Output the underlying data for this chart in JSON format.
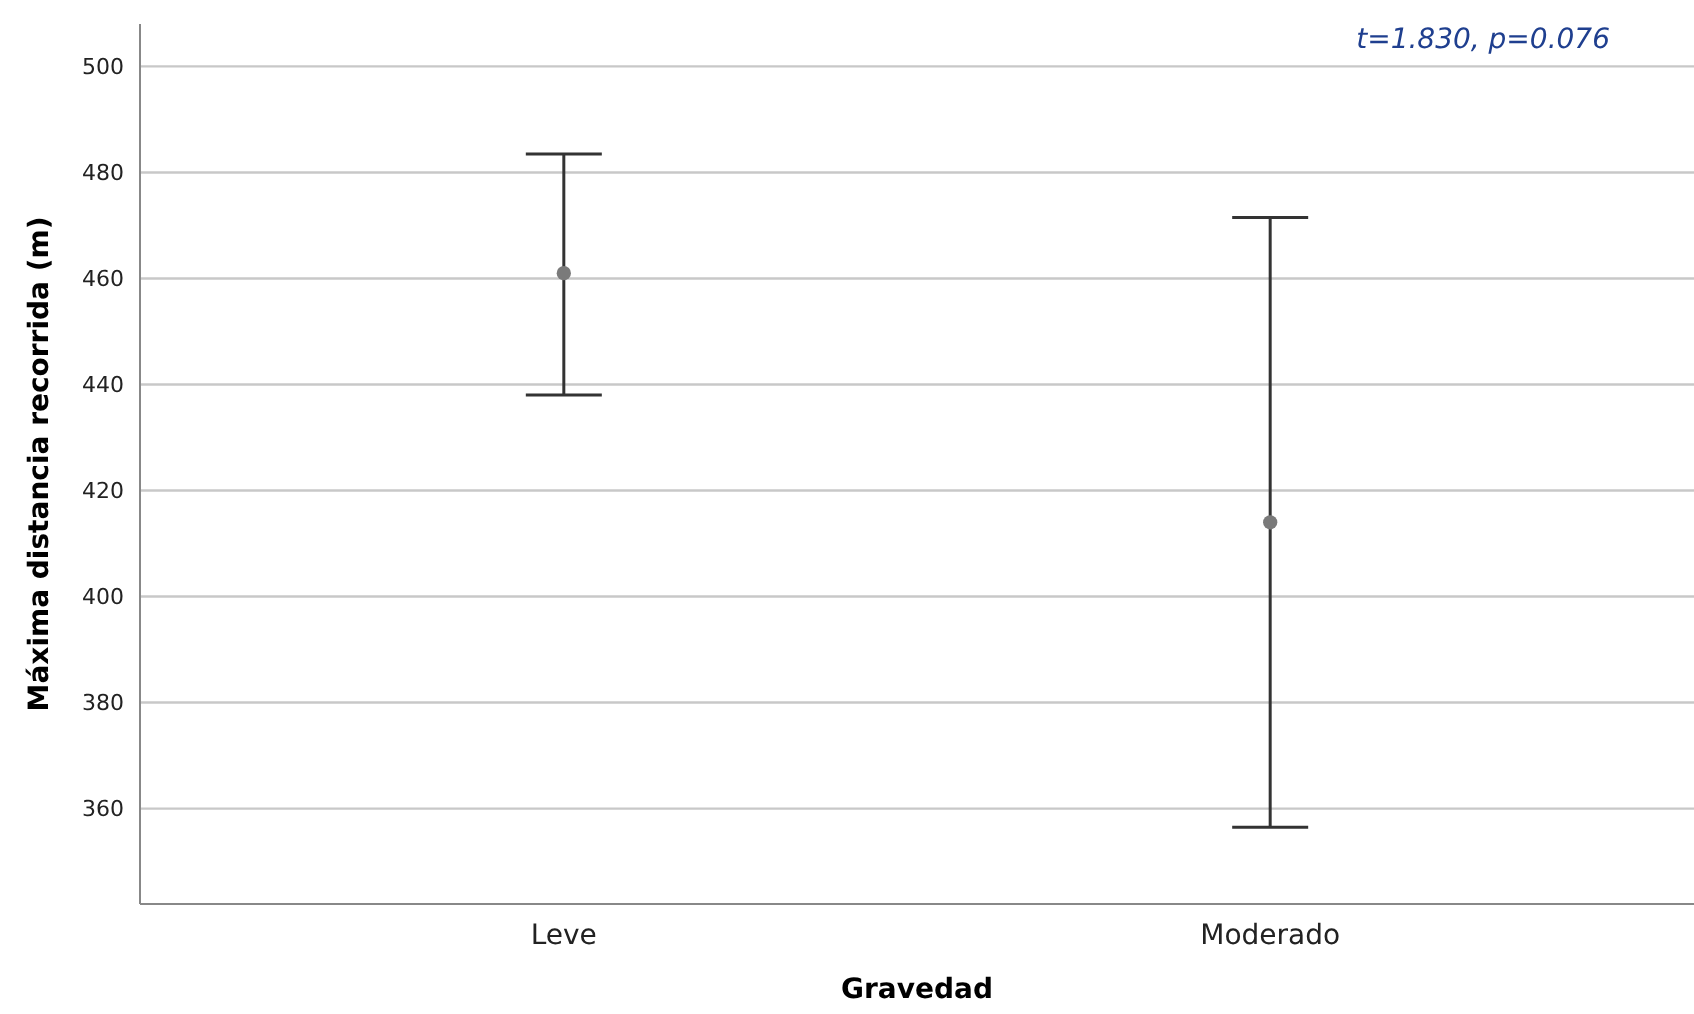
{
  "chart_data": {
    "type": "scatter",
    "xlabel": "Gravedad",
    "ylabel": "Máxima distancia recorrida (m)",
    "categories": [
      "Leve",
      "Moderado"
    ],
    "values": [
      461,
      414
    ],
    "errors": [
      [
        438,
        483.5
      ],
      [
        356.5,
        471.5
      ]
    ],
    "color": "#7a7a7a",
    "marker": "circle",
    "ylim": [
      342,
      508
    ],
    "yticks": [
      360,
      380,
      400,
      420,
      440,
      460,
      480,
      500
    ],
    "grid": "y",
    "annotations": [
      "t=1.830, p=0.076"
    ]
  }
}
